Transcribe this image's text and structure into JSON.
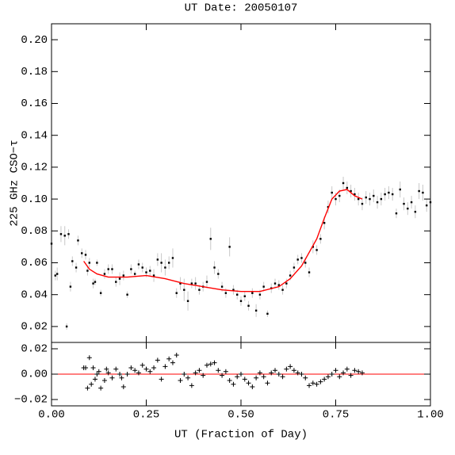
{
  "chart_data": [
    {
      "type": "scatter",
      "title": "UT Date: 20050107",
      "y_label": "225 GHz CSO−τ",
      "xlim": [
        0,
        1
      ],
      "ylim": [
        0.01,
        0.21
      ],
      "xticks": [
        0,
        0.25,
        0.5,
        0.75,
        1
      ],
      "yticks": [
        0.02,
        0.04,
        0.06,
        0.08,
        {
          "value": 0.1,
          "label": "0.10"
        },
        0.12,
        0.14,
        0.16,
        0.18,
        {
          "value": 0.2,
          "label": "0.20"
        }
      ],
      "series": [
        {
          "kind": "points",
          "color": "#000000",
          "error_color": "#c8c8c8",
          "x": [
            0.0,
            0.01,
            0.015,
            0.025,
            0.035,
            0.04,
            0.045,
            0.05,
            0.055,
            0.065,
            0.07,
            0.08,
            0.09,
            0.095,
            0.1,
            0.11,
            0.115,
            0.12,
            0.13,
            0.14,
            0.15,
            0.16,
            0.17,
            0.18,
            0.19,
            0.2,
            0.21,
            0.22,
            0.23,
            0.24,
            0.25,
            0.26,
            0.27,
            0.28,
            0.29,
            0.3,
            0.31,
            0.32,
            0.33,
            0.34,
            0.35,
            0.36,
            0.37,
            0.38,
            0.39,
            0.4,
            0.41,
            0.42,
            0.43,
            0.44,
            0.45,
            0.46,
            0.47,
            0.48,
            0.49,
            0.5,
            0.51,
            0.52,
            0.53,
            0.54,
            0.55,
            0.56,
            0.57,
            0.58,
            0.59,
            0.6,
            0.61,
            0.62,
            0.63,
            0.64,
            0.65,
            0.66,
            0.67,
            0.68,
            0.69,
            0.7,
            0.71,
            0.72,
            0.73,
            0.74,
            0.75,
            0.76,
            0.77,
            0.78,
            0.79,
            0.8,
            0.81,
            0.82,
            0.83,
            0.84,
            0.85,
            0.86,
            0.87,
            0.88,
            0.89,
            0.9,
            0.91,
            0.92,
            0.93,
            0.94,
            0.95,
            0.96,
            0.97,
            0.98,
            0.99,
            1.0
          ],
          "values": [
            0.072,
            0.052,
            0.053,
            0.078,
            0.077,
            0.02,
            0.078,
            0.045,
            0.061,
            0.057,
            0.074,
            0.066,
            0.065,
            0.055,
            0.06,
            0.047,
            0.048,
            0.06,
            0.041,
            0.053,
            0.056,
            0.056,
            0.048,
            0.05,
            0.052,
            0.04,
            0.056,
            0.053,
            0.059,
            0.057,
            0.054,
            0.055,
            0.052,
            0.062,
            0.06,
            0.057,
            0.06,
            0.063,
            0.041,
            0.047,
            0.043,
            0.036,
            0.047,
            0.047,
            0.043,
            0.045,
            0.048,
            0.075,
            0.057,
            0.053,
            0.045,
            0.041,
            0.07,
            0.043,
            0.04,
            0.036,
            0.039,
            0.033,
            0.041,
            0.03,
            0.04,
            0.045,
            0.028,
            0.044,
            0.047,
            0.046,
            0.043,
            0.047,
            0.052,
            0.057,
            0.062,
            0.063,
            0.06,
            0.054,
            0.07,
            0.068,
            0.075,
            0.085,
            0.095,
            0.104,
            0.1,
            0.102,
            0.11,
            0.107,
            0.105,
            0.103,
            0.1,
            0.097,
            0.101,
            0.1,
            0.102,
            0.098,
            0.1,
            0.103,
            0.104,
            0.103,
            0.091,
            0.106,
            0.097,
            0.094,
            0.098,
            0.092,
            0.105,
            0.104,
            0.096,
            0.098
          ],
          "errors": [
            0.004,
            0.003,
            0.004,
            0.005,
            0.006,
            0.002,
            0.003,
            0.003,
            0.003,
            0.003,
            0.003,
            0.003,
            0.003,
            0.003,
            0.003,
            0.003,
            0.002,
            0.002,
            0.002,
            0.003,
            0.003,
            0.003,
            0.003,
            0.004,
            0.003,
            0.002,
            0.003,
            0.002,
            0.003,
            0.003,
            0.003,
            0.003,
            0.004,
            0.004,
            0.006,
            0.005,
            0.004,
            0.006,
            0.003,
            0.004,
            0.007,
            0.006,
            0.003,
            0.004,
            0.003,
            0.003,
            0.004,
            0.007,
            0.004,
            0.003,
            0.003,
            0.003,
            0.006,
            0.003,
            0.003,
            0.003,
            0.003,
            0.003,
            0.003,
            0.004,
            0.003,
            0.003,
            0.002,
            0.003,
            0.003,
            0.003,
            0.003,
            0.003,
            0.003,
            0.003,
            0.003,
            0.003,
            0.003,
            0.003,
            0.004,
            0.003,
            0.003,
            0.004,
            0.004,
            0.004,
            0.004,
            0.004,
            0.004,
            0.004,
            0.004,
            0.004,
            0.004,
            0.004,
            0.004,
            0.004,
            0.004,
            0.004,
            0.004,
            0.004,
            0.004,
            0.004,
            0.003,
            0.005,
            0.004,
            0.004,
            0.004,
            0.004,
            0.005,
            0.005,
            0.004,
            0.004
          ]
        },
        {
          "kind": "line",
          "color": "#ff0000",
          "x": [
            0.085,
            0.1,
            0.12,
            0.15,
            0.2,
            0.25,
            0.3,
            0.35,
            0.4,
            0.45,
            0.5,
            0.55,
            0.6,
            0.63,
            0.66,
            0.7,
            0.72,
            0.74,
            0.76,
            0.78,
            0.8,
            0.82
          ],
          "values": [
            0.061,
            0.056,
            0.053,
            0.051,
            0.051,
            0.052,
            0.05,
            0.047,
            0.045,
            0.043,
            0.042,
            0.042,
            0.045,
            0.05,
            0.058,
            0.075,
            0.088,
            0.1,
            0.105,
            0.106,
            0.102,
            0.1
          ]
        }
      ]
    },
    {
      "type": "scatter",
      "x_label": "UT (Fraction of Day)",
      "xlim": [
        0,
        1
      ],
      "ylim": [
        -0.025,
        0.025
      ],
      "xticks": [
        {
          "value": 0,
          "label": "0.00"
        },
        0.25,
        {
          "value": 0.5,
          "label": "0.50"
        },
        0.75,
        {
          "value": 1,
          "label": "1.00"
        }
      ],
      "yticks": [
        {
          "value": -0.02,
          "label": "−0.02"
        },
        {
          "value": 0,
          "label": "0.00"
        },
        0.02
      ],
      "reference_line": {
        "value": 0,
        "color": "#ff0000"
      },
      "series": [
        {
          "kind": "crosses",
          "color": "#000000",
          "x": [
            0.085,
            0.09,
            0.095,
            0.1,
            0.105,
            0.11,
            0.115,
            0.12,
            0.125,
            0.13,
            0.14,
            0.145,
            0.15,
            0.16,
            0.17,
            0.18,
            0.185,
            0.19,
            0.2,
            0.21,
            0.22,
            0.23,
            0.24,
            0.25,
            0.26,
            0.27,
            0.28,
            0.29,
            0.3,
            0.31,
            0.32,
            0.33,
            0.34,
            0.35,
            0.36,
            0.37,
            0.38,
            0.39,
            0.4,
            0.41,
            0.42,
            0.43,
            0.44,
            0.45,
            0.46,
            0.47,
            0.48,
            0.49,
            0.5,
            0.51,
            0.52,
            0.53,
            0.54,
            0.55,
            0.56,
            0.57,
            0.58,
            0.59,
            0.6,
            0.61,
            0.62,
            0.63,
            0.64,
            0.65,
            0.66,
            0.67,
            0.68,
            0.69,
            0.7,
            0.71,
            0.72,
            0.73,
            0.74,
            0.75,
            0.76,
            0.77,
            0.78,
            0.79,
            0.8,
            0.81,
            0.82
          ],
          "values": [
            0.005,
            0.005,
            -0.011,
            0.013,
            -0.008,
            0.005,
            -0.004,
            0.0,
            0.002,
            -0.011,
            -0.005,
            0.004,
            0.001,
            -0.003,
            0.004,
            0.0,
            -0.003,
            -0.01,
            0.0,
            0.005,
            0.003,
            0.001,
            0.007,
            0.004,
            0.002,
            0.005,
            0.011,
            -0.004,
            0.006,
            0.012,
            0.009,
            0.015,
            -0.005,
            0.0,
            -0.003,
            -0.009,
            0.001,
            0.003,
            -0.001,
            0.007,
            0.008,
            0.009,
            0.003,
            -0.001,
            0.002,
            -0.005,
            -0.008,
            -0.002,
            0.0,
            -0.004,
            -0.007,
            -0.01,
            -0.003,
            0.001,
            -0.002,
            -0.007,
            0.001,
            0.003,
            0.0,
            -0.002,
            0.004,
            0.006,
            0.003,
            0.001,
            0.0,
            -0.003,
            -0.009,
            -0.007,
            -0.008,
            -0.006,
            -0.004,
            -0.002,
            0.0,
            0.003,
            -0.002,
            0.001,
            0.004,
            -0.001,
            0.003,
            0.002,
            0.001
          ]
        }
      ]
    }
  ]
}
